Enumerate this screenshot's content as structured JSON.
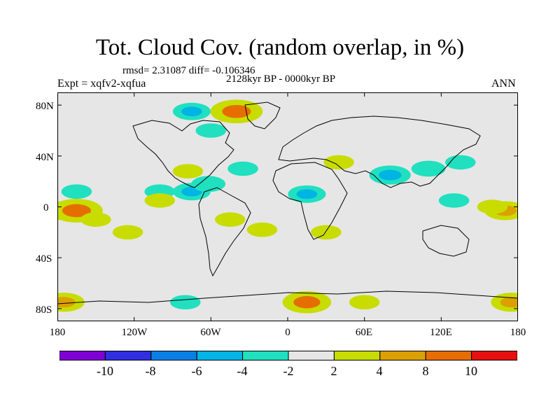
{
  "header": {
    "title": "Tot. Cloud Cov. (random overlap, in %)",
    "stats": "rmsd= 2.31087 diff= -0.106346",
    "period": "2128kyr BP - 0000kyr BP",
    "experiment": "Expt = xqfv2-xqfua",
    "season": "ANN"
  },
  "map": {
    "lat_labels": [
      "80N",
      "40N",
      "0",
      "40S",
      "80S"
    ],
    "lon_labels": [
      "180",
      "120W",
      "60W",
      "0",
      "60E",
      "120E",
      "180"
    ],
    "background_color": "#e6e6e6",
    "anomalies": [
      {
        "lon": -175,
        "lat": -3,
        "value": 6
      },
      {
        "lon": -165,
        "lat": -3,
        "value": 9
      },
      {
        "lon": 170,
        "lat": -3,
        "value": 6
      },
      {
        "lon": -150,
        "lat": -10,
        "value": 3
      },
      {
        "lon": -125,
        "lat": -20,
        "value": 3
      },
      {
        "lon": -165,
        "lat": 12,
        "value": -3
      },
      {
        "lon": -100,
        "lat": 12,
        "value": -3
      },
      {
        "lon": -100,
        "lat": 5,
        "value": 3
      },
      {
        "lon": -75,
        "lat": 12,
        "value": -5
      },
      {
        "lon": -62,
        "lat": 18,
        "value": -4
      },
      {
        "lon": -78,
        "lat": 28,
        "value": 3
      },
      {
        "lon": -35,
        "lat": 30,
        "value": -3
      },
      {
        "lon": -45,
        "lat": -10,
        "value": 3
      },
      {
        "lon": -20,
        "lat": -18,
        "value": 3
      },
      {
        "lon": 15,
        "lat": 10,
        "value": -5
      },
      {
        "lon": 40,
        "lat": 35,
        "value": 3
      },
      {
        "lon": 30,
        "lat": -20,
        "value": 3
      },
      {
        "lon": 80,
        "lat": 25,
        "value": -6
      },
      {
        "lon": 110,
        "lat": 30,
        "value": -4
      },
      {
        "lon": 135,
        "lat": 35,
        "value": -3
      },
      {
        "lon": 130,
        "lat": 5,
        "value": -3
      },
      {
        "lon": 160,
        "lat": 0,
        "value": 3
      },
      {
        "lon": -60,
        "lat": 60,
        "value": -3
      },
      {
        "lon": -40,
        "lat": 75,
        "value": 9
      },
      {
        "lon": -75,
        "lat": 75,
        "value": -5
      },
      {
        "lon": 15,
        "lat": -75,
        "value": 8
      },
      {
        "lon": -175,
        "lat": -75,
        "value": 6
      },
      {
        "lon": 175,
        "lat": -75,
        "value": 6
      },
      {
        "lon": -80,
        "lat": -75,
        "value": -3
      },
      {
        "lon": 60,
        "lat": -75,
        "value": 3
      }
    ]
  },
  "colorbar": {
    "colors": [
      "#7f00d4",
      "#3030e0",
      "#0a80e6",
      "#00b4e6",
      "#20e0c0",
      "#e6e6e6",
      "#c8dc00",
      "#dca000",
      "#e66e00",
      "#e61010"
    ],
    "tick_labels": [
      "-10",
      "-8",
      "-6",
      "-4",
      "-2",
      "2",
      "4",
      "8",
      "10"
    ]
  }
}
